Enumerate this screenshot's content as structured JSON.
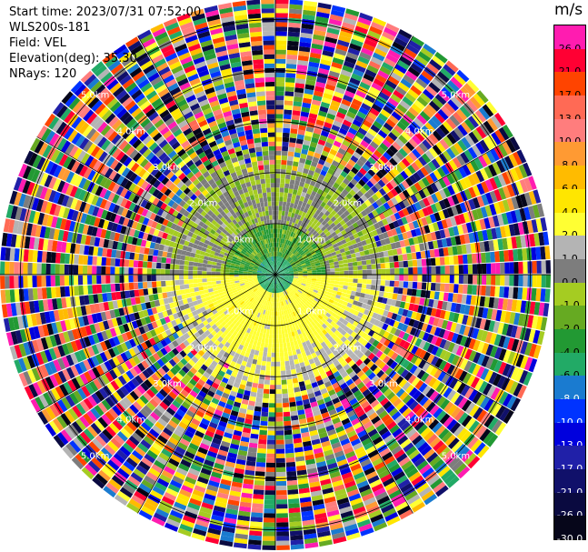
{
  "header": {
    "start_time": "Start time: 2023/07/31 07:52:00",
    "instrument": "WLS200s-181",
    "field": "Field: VEL",
    "elevation": "Elevation(deg): 35.30",
    "nrays": "NRays: 120"
  },
  "chart_data": {
    "type": "heatmap",
    "projection": "polar-ppi",
    "field": "VEL",
    "unit_label": "m/s",
    "n_rays": 120,
    "range_rings_km": [
      1.0,
      2.0,
      3.0,
      4.0,
      5.0
    ],
    "ring_labels": [
      "1.0km",
      "2.0km",
      "3.0km",
      "4.0km",
      "5.0km"
    ],
    "max_range_km": 5.4,
    "colorbar": {
      "ticks": [
        "26.0",
        "21.0",
        "17.0",
        "13.0",
        "10.0",
        "8.0",
        "6.0",
        "4.0",
        "2.0",
        "1.0",
        "0.0",
        "-1.0",
        "-2.0",
        "-4.0",
        "-6.0",
        "-8.0",
        "-10.0",
        "-13.0",
        "-17.0",
        "-21.0",
        "-26.0",
        "-30.0"
      ],
      "colors": [
        "#ff1cb0",
        "#ff0033",
        "#ff4400",
        "#ff6a55",
        "#ff7d7d",
        "#ff9a33",
        "#ffbb00",
        "#ffe600",
        "#ffff33",
        "#b4b4b4",
        "#7d7d7d",
        "#a5cc22",
        "#66aa22",
        "#229933",
        "#22aa66",
        "#1a7bd0",
        "#0033ff",
        "#0000dd",
        "#2020a8",
        "#10106a",
        "#0a0a40",
        "#06061a"
      ]
    },
    "pattern": [
      {
        "range_km": [
          0.0,
          0.4
        ],
        "value": -5,
        "note": "near-field dark green centre"
      },
      {
        "range_km": [
          0.4,
          1.0
        ],
        "sector": "north",
        "value": -2
      },
      {
        "range_km": [
          0.4,
          1.5
        ],
        "sector": "south",
        "value": 3
      },
      {
        "range_km": [
          1.0,
          2.5
        ],
        "sector": "north",
        "value": 0
      },
      {
        "range_km": [
          1.0,
          2.5
        ],
        "sector": "south",
        "value": 2
      },
      {
        "range_km": [
          2.5,
          5.4
        ],
        "value": "noise"
      }
    ]
  }
}
